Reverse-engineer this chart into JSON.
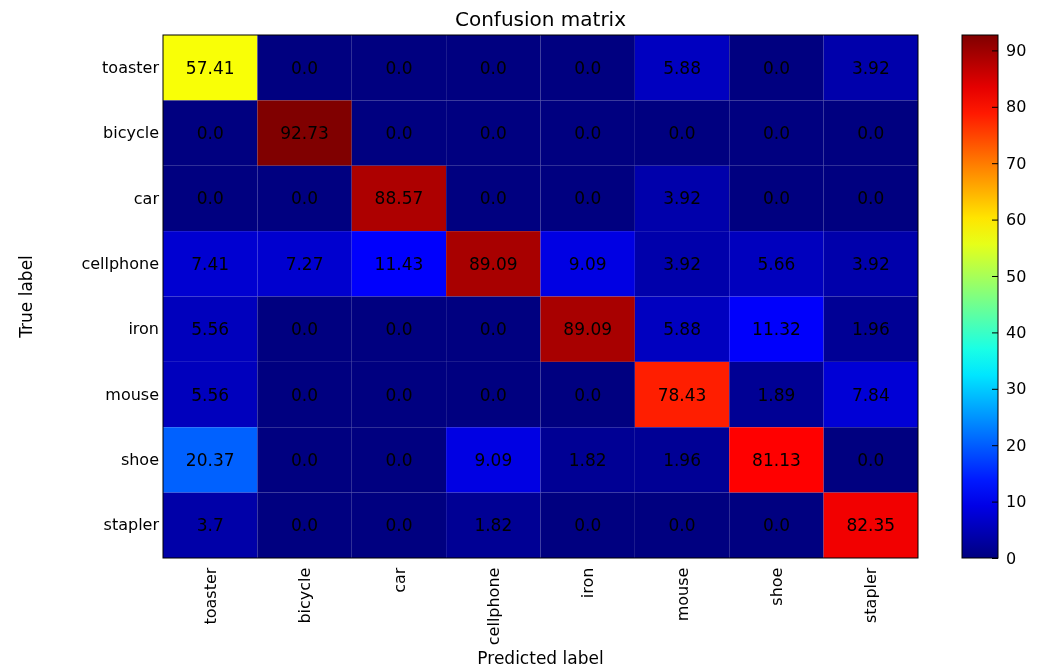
{
  "chart_data": {
    "type": "heatmap",
    "title": "Confusion matrix",
    "xlabel": "Predicted label",
    "ylabel": "True label",
    "categories": [
      "toaster",
      "bicycle",
      "car",
      "cellphone",
      "iron",
      "mouse",
      "shoe",
      "stapler"
    ],
    "y_categories": [
      "toaster",
      "bicycle",
      "car",
      "cellphone",
      "iron",
      "mouse",
      "shoe",
      "stapler"
    ],
    "cells": [
      [
        57.41,
        0,
        0,
        0,
        0,
        5.88,
        0,
        3.92
      ],
      [
        0,
        92.73,
        0,
        0,
        0,
        0,
        0,
        0
      ],
      [
        0,
        0,
        88.57,
        0,
        0,
        3.92,
        0,
        0
      ],
      [
        7.41,
        7.27,
        11.43,
        89.09,
        9.09,
        3.92,
        5.66,
        3.92
      ],
      [
        5.56,
        0,
        0,
        0,
        89.09,
        5.88,
        11.32,
        1.96
      ],
      [
        5.56,
        0,
        0,
        0,
        0,
        78.43,
        1.89,
        7.84
      ],
      [
        20.37,
        0,
        0,
        9.09,
        1.82,
        1.96,
        81.13,
        0
      ],
      [
        3.7,
        0,
        0,
        1.82,
        0,
        0,
        0,
        82.35
      ]
    ],
    "cell_labels": [
      [
        "57.41",
        "0.0",
        "0.0",
        "0.0",
        "0.0",
        "5.88",
        "0.0",
        "3.92"
      ],
      [
        "0.0",
        "92.73",
        "0.0",
        "0.0",
        "0.0",
        "0.0",
        "0.0",
        "0.0"
      ],
      [
        "0.0",
        "0.0",
        "88.57",
        "0.0",
        "0.0",
        "3.92",
        "0.0",
        "0.0"
      ],
      [
        "7.41",
        "7.27",
        "11.43",
        "89.09",
        "9.09",
        "3.92",
        "5.66",
        "3.92"
      ],
      [
        "5.56",
        "0.0",
        "0.0",
        "0.0",
        "89.09",
        "5.88",
        "11.32",
        "1.96"
      ],
      [
        "5.56",
        "0.0",
        "0.0",
        "0.0",
        "0.0",
        "78.43",
        "1.89",
        "7.84"
      ],
      [
        "20.37",
        "0.0",
        "0.0",
        "9.09",
        "1.82",
        "1.96",
        "81.13",
        "0.0"
      ],
      [
        "3.7",
        "0.0",
        "0.0",
        "1.82",
        "0.0",
        "0.0",
        "0.0",
        "82.35"
      ]
    ],
    "clim": [
      0,
      92.73
    ],
    "cticks": [
      0,
      10,
      20,
      30,
      40,
      50,
      60,
      70,
      80,
      90
    ]
  }
}
